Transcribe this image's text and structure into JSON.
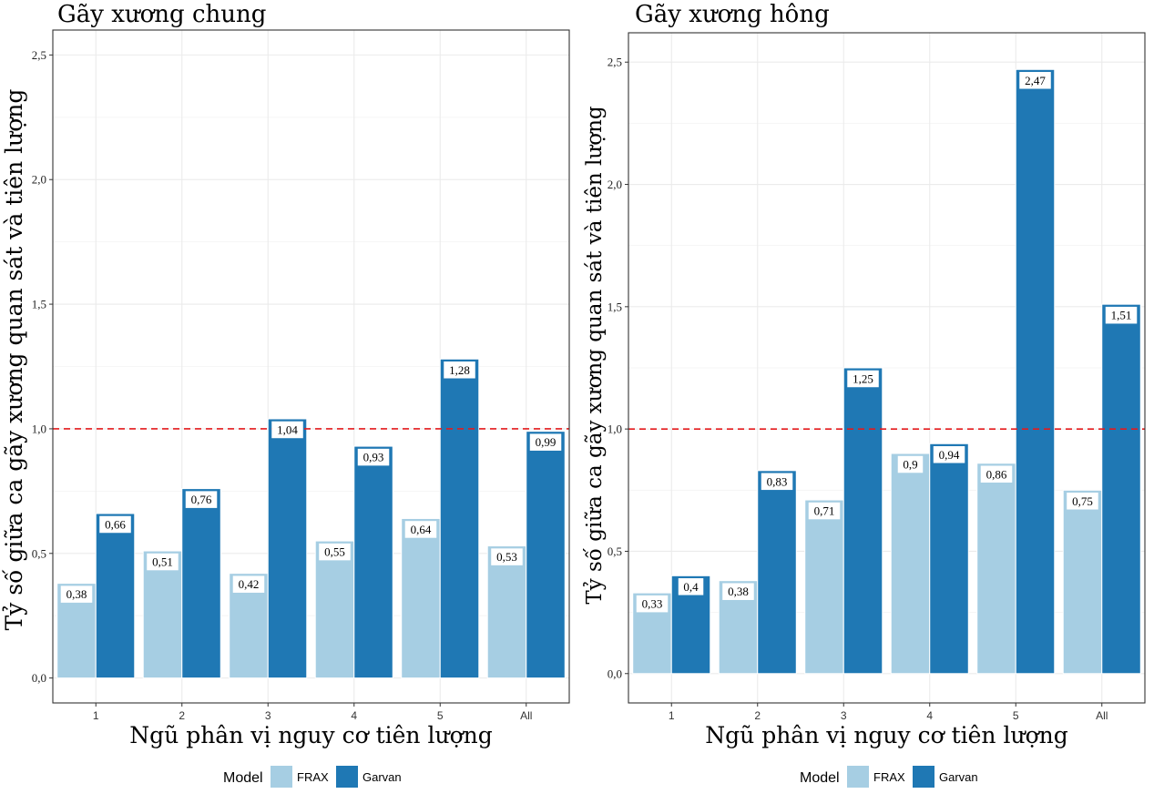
{
  "colors": {
    "frax": "#a6cee3",
    "garvan": "#1f78b4",
    "reference_line": "#e41a1c",
    "grid": "#ebebeb",
    "panel_border": "#333333"
  },
  "legend": {
    "title": "Model",
    "items": [
      "FRAX",
      "Garvan"
    ]
  },
  "chart_data": [
    {
      "type": "bar",
      "title": "Gãy xương chung",
      "xlabel": "Ngũ phân vị nguy cơ tiên lượng",
      "ylabel": "Tỷ số giữa ca gãy xương quan sát và tiên lượng",
      "categories": [
        "1",
        "2",
        "3",
        "4",
        "5",
        "All"
      ],
      "series": [
        {
          "name": "FRAX",
          "values": [
            0.38,
            0.51,
            0.42,
            0.55,
            0.64,
            0.53
          ],
          "labels": [
            "0,38",
            "0,51",
            "0,42",
            "0,55",
            "0,64",
            "0,53"
          ]
        },
        {
          "name": "Garvan",
          "values": [
            0.66,
            0.76,
            1.04,
            0.93,
            1.28,
            0.99
          ],
          "labels": [
            "0,66",
            "0,76",
            "1,04",
            "0,93",
            "1,28",
            "0,99"
          ]
        }
      ],
      "ylim": [
        -0.1,
        2.6
      ],
      "yticks": [
        0,
        0.5,
        1.0,
        1.5,
        2.0,
        2.5
      ],
      "ytick_labels": [
        "0,0",
        "0,5",
        "1,0",
        "1,5",
        "2,0",
        "2,5"
      ],
      "reference_line": 1.0,
      "grid": true,
      "legend_position": "bottom"
    },
    {
      "type": "bar",
      "title": "Gãy xương hông",
      "xlabel": "Ngũ phân vị nguy cơ tiên lượng",
      "ylabel": "Tỷ số giữa ca gãy xương quan sát và tiên lượng",
      "categories": [
        "1",
        "2",
        "3",
        "4",
        "5",
        "All"
      ],
      "series": [
        {
          "name": "FRAX",
          "values": [
            0.33,
            0.38,
            0.71,
            0.9,
            0.86,
            0.75
          ],
          "labels": [
            "0,33",
            "0,38",
            "0,71",
            "0,9",
            "0,86",
            "0,75"
          ]
        },
        {
          "name": "Garvan",
          "values": [
            0.4,
            0.83,
            1.25,
            0.94,
            2.47,
            1.51
          ],
          "labels": [
            "0,4",
            "0,83",
            "1,25",
            "0,94",
            "2,47",
            "1,51"
          ]
        }
      ],
      "ylim": [
        -0.12,
        2.62
      ],
      "yticks": [
        0,
        0.5,
        1.0,
        1.5,
        2.0,
        2.5
      ],
      "ytick_labels": [
        "0,0",
        "0,5",
        "1,0",
        "1,5",
        "2,0",
        "2,5"
      ],
      "reference_line": 1.0,
      "grid": true,
      "legend_position": "bottom"
    }
  ]
}
